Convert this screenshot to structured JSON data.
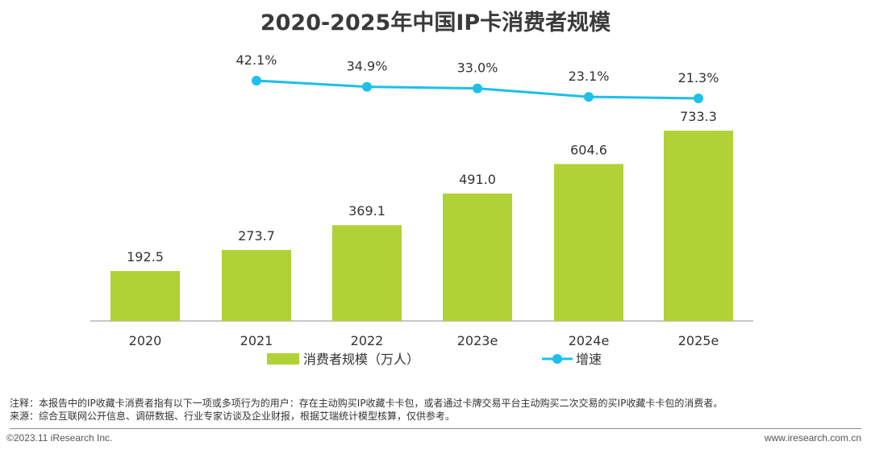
{
  "chart_data": {
    "type": "bar",
    "title": "2020-2025年中国IP卡消费者规模",
    "categories": [
      "2020",
      "2021",
      "2022",
      "2023e",
      "2024e",
      "2025e"
    ],
    "series": [
      {
        "name": "消费者规模（万人）",
        "type": "bar",
        "color": "#b0d236",
        "values": [
          192.5,
          273.7,
          369.1,
          491.0,
          604.6,
          733.3
        ],
        "labels": [
          "192.5",
          "273.7",
          "369.1",
          "491.0",
          "604.6",
          "733.3"
        ]
      },
      {
        "name": "增速",
        "type": "line",
        "color": "#1cc0e8",
        "values": [
          null,
          42.1,
          34.9,
          33.0,
          23.1,
          21.3
        ],
        "labels": [
          "",
          "42.1%",
          "34.9%",
          "33.0%",
          "23.1%",
          "21.3%"
        ]
      }
    ],
    "legend_position": "bottom",
    "grid": false
  },
  "notes": [
    "注释：本报告中的IP收藏卡消费者指有以下一项或多项行为的用户：存在主动购买IP收藏卡卡包，或者通过卡牌交易平台主动购买二次交易的买IP收藏卡卡包的消费者。",
    "来源：综合互联网公开信息、调研数据、行业专家访谈及企业财报，根据艾瑞统计模型核算，仅供参考。"
  ],
  "footer": {
    "copyright": "©2023.11 iResearch Inc.",
    "website": "www.iresearch.com.cn"
  }
}
